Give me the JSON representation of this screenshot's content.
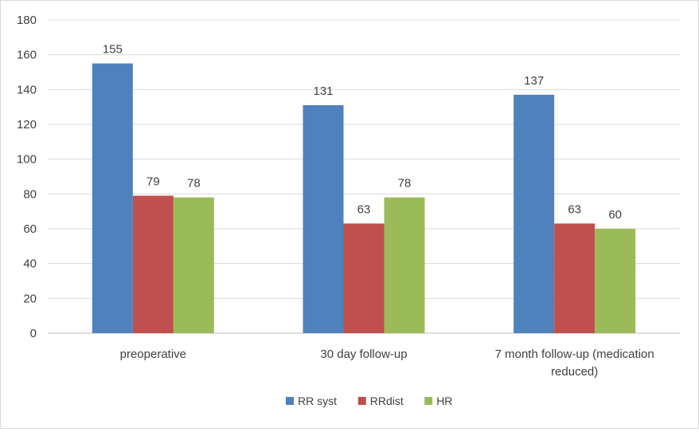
{
  "chart_data": {
    "type": "bar",
    "categories": [
      [
        "preoperative"
      ],
      [
        "30 day follow-up"
      ],
      [
        "7 month follow-up (medication",
        "reduced)"
      ]
    ],
    "series": [
      {
        "name": "RR syst",
        "values": [
          155,
          131,
          137
        ],
        "color": "#4f81bd"
      },
      {
        "name": "RRdist",
        "values": [
          79,
          63,
          63
        ],
        "color": "#c0504d"
      },
      {
        "name": "HR",
        "values": [
          78,
          78,
          60
        ],
        "color": "#9bbb59"
      }
    ],
    "ylim": [
      0,
      180
    ],
    "yticks": [
      0,
      20,
      40,
      60,
      80,
      100,
      120,
      140,
      160,
      180
    ],
    "grid": true,
    "legend": "bottom",
    "data_labels": true
  }
}
